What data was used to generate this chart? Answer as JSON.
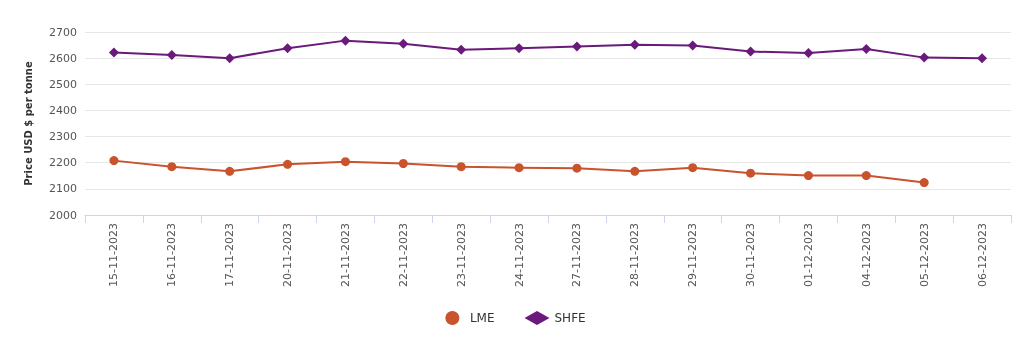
{
  "chart_data": {
    "type": "line",
    "ylabel": "Price USD $ per tonne",
    "categories": [
      "15-11-2023",
      "16-11-2023",
      "17-11-2023",
      "20-11-2023",
      "21-11-2023",
      "22-11-2023",
      "23-11-2023",
      "24-11-2023",
      "27-11-2023",
      "28-11-2023",
      "29-11-2023",
      "30-11-2023",
      "01-12-2023",
      "04-12-2023",
      "05-12-2023",
      "06-12-2023"
    ],
    "series": [
      {
        "name": "LME",
        "color": "#c9532c",
        "marker": "circle",
        "values": [
          2208,
          2185,
          2167,
          2194,
          2204,
          2197,
          2185,
          2181,
          2179,
          2167,
          2181,
          2160,
          2151,
          2151,
          2124,
          null
        ]
      },
      {
        "name": "SHFE",
        "color": "#6a1a7a",
        "marker": "diamond",
        "values": [
          2622,
          2612,
          2600,
          2638,
          2667,
          2655,
          2632,
          2638,
          2645,
          2651,
          2648,
          2625,
          2620,
          2635,
          2602,
          2600
        ]
      }
    ],
    "ylim": [
      2000,
      2700
    ],
    "yticks": [
      2000,
      2100,
      2200,
      2300,
      2400,
      2500,
      2600,
      2700
    ],
    "grid": "y",
    "legend": "bottom"
  }
}
